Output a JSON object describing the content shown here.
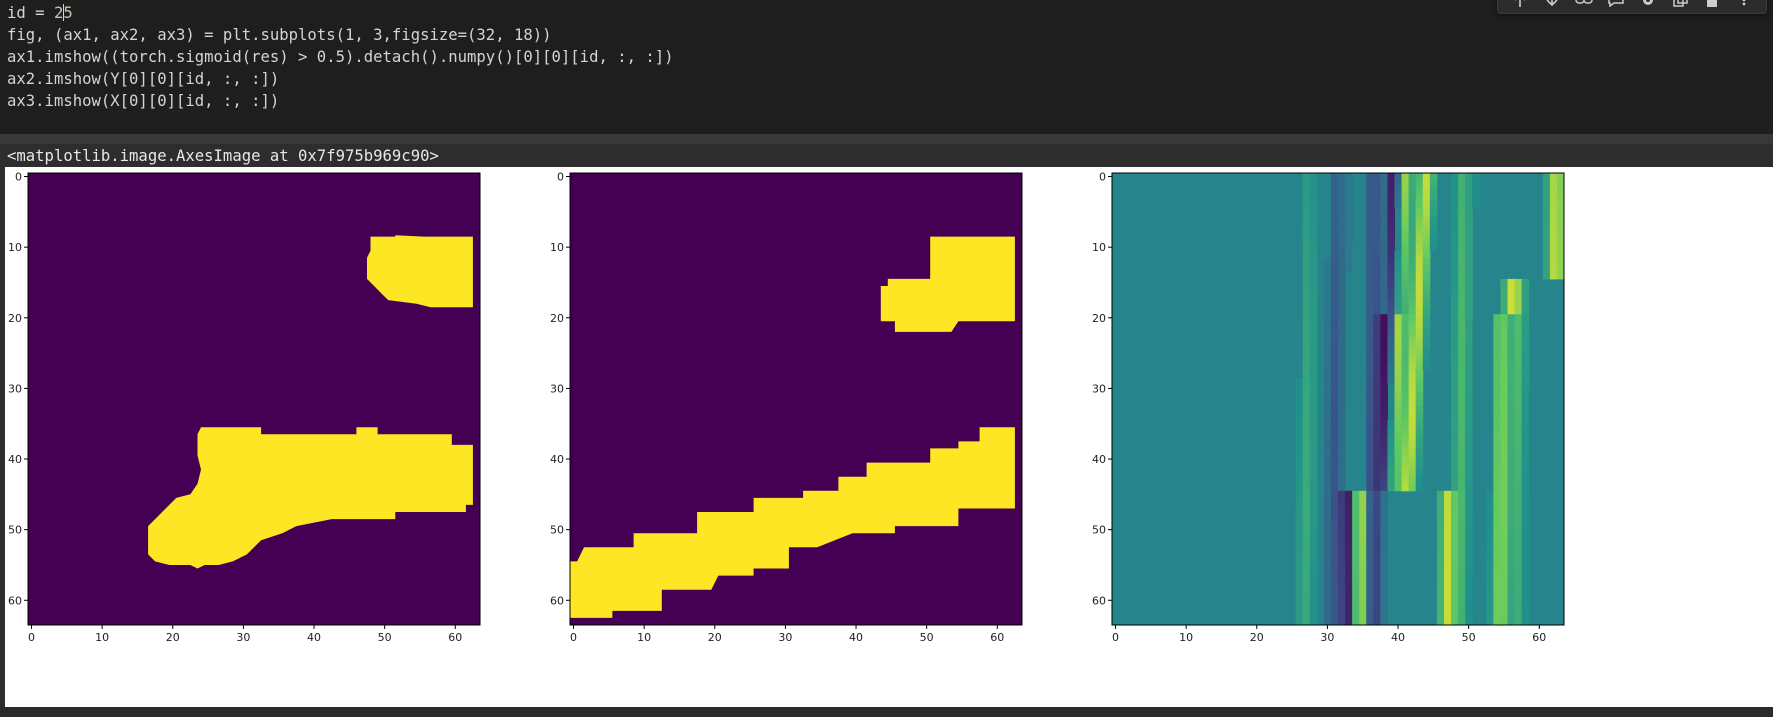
{
  "code_cell": {
    "lines": [
      "id = 2|5",
      "fig, (ax1, ax2, ax3) = plt.subplots(1, 3,figsize=(32, 18))",
      "ax1.imshow((torch.sigmoid(res) > 0.5).detach().numpy()[0][0][id, :, :])",
      "ax2.imshow(Y[0][0][id, :, :])",
      "ax3.imshow(X[0][0][id, :, :])"
    ]
  },
  "toolbar": {
    "icons": [
      "arrow-up-icon",
      "arrow-down-icon",
      "link-icon",
      "comment-icon",
      "gear-icon",
      "copy-icon",
      "delete-icon",
      "more-icon"
    ]
  },
  "output": {
    "repr_text": "<matplotlib.image.AxesImage at 0x7f975b969c90>"
  },
  "colors": {
    "viridis_low": "#440154",
    "viridis_high": "#fde725",
    "editor_bg": "#1e1e1e"
  },
  "chart_data": [
    {
      "type": "heatmap",
      "title": "",
      "xticks": [
        0,
        10,
        20,
        30,
        40,
        50,
        60
      ],
      "yticks": [
        0,
        10,
        20,
        30,
        40,
        50,
        60
      ],
      "xlim": [
        0,
        63
      ],
      "ylim": [
        63,
        0
      ],
      "colormap": "viridis",
      "values": "binary mask: two yellow blobs on purple, upper-right blob (rows 9-19, cols 48-63) and lower diagonal band (rows 36-56, cols 17-63)",
      "regions": [
        {
          "value": 1,
          "rows": [
            9,
            19
          ],
          "cols": [
            48,
            63
          ]
        },
        {
          "value": 1,
          "rows": [
            36,
            56
          ],
          "cols": [
            17,
            63
          ]
        }
      ]
    },
    {
      "type": "heatmap",
      "title": "",
      "xticks": [
        0,
        10,
        20,
        30,
        40,
        50,
        60
      ],
      "yticks": [
        0,
        10,
        20,
        30,
        40,
        50,
        60
      ],
      "xlim": [
        0,
        63
      ],
      "ylim": [
        63,
        0
      ],
      "colormap": "viridis",
      "regions": [
        {
          "value": 1,
          "rows": [
            9,
            22
          ],
          "cols": [
            44,
            63
          ]
        },
        {
          "value": 1,
          "rows": [
            36,
            63
          ],
          "cols": [
            0,
            63
          ]
        }
      ]
    },
    {
      "type": "heatmap",
      "title": "",
      "xticks": [
        0,
        10,
        20,
        30,
        40,
        50,
        60
      ],
      "yticks": [
        0,
        10,
        20,
        30,
        40,
        50,
        60
      ],
      "xlim": [
        0,
        63
      ],
      "ylim": [
        63,
        0
      ],
      "colormap": "viridis"
    }
  ]
}
